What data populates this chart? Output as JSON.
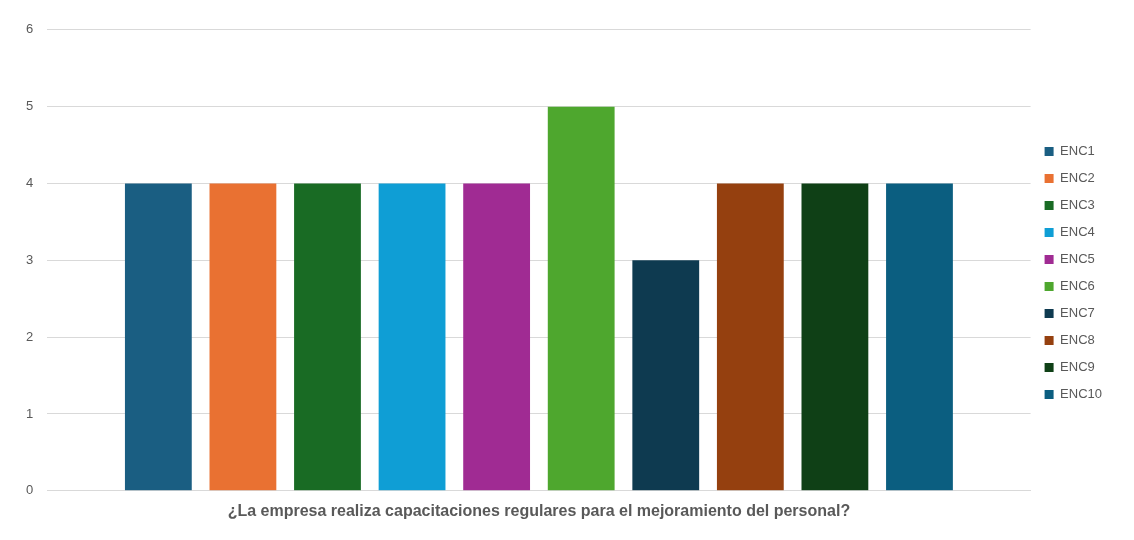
{
  "chart_data": {
    "type": "bar",
    "categories": [
      "¿La empresa realiza capacitaciones regulares para el mejoramiento del personal?"
    ],
    "series": [
      {
        "name": "ENC1",
        "color": "#1a5e82",
        "values": [
          4
        ]
      },
      {
        "name": "ENC2",
        "color": "#e97132",
        "values": [
          4
        ]
      },
      {
        "name": "ENC3",
        "color": "#196b24",
        "values": [
          4
        ]
      },
      {
        "name": "ENC4",
        "color": "#0f9ed5",
        "values": [
          4
        ]
      },
      {
        "name": "ENC5",
        "color": "#a02b93",
        "values": [
          4
        ]
      },
      {
        "name": "ENC6",
        "color": "#4ea72e",
        "values": [
          5
        ]
      },
      {
        "name": "ENC7",
        "color": "#0e3a50",
        "values": [
          3
        ]
      },
      {
        "name": "ENC8",
        "color": "#95400f",
        "values": [
          4
        ]
      },
      {
        "name": "ENC9",
        "color": "#0f4016",
        "values": [
          4
        ]
      },
      {
        "name": "ENC10",
        "color": "#0b5e80",
        "values": [
          4
        ]
      }
    ],
    "ylim": [
      0,
      6
    ],
    "yticks": [
      0,
      1,
      2,
      3,
      4,
      5,
      6
    ],
    "grid": "y",
    "legend": "right"
  }
}
